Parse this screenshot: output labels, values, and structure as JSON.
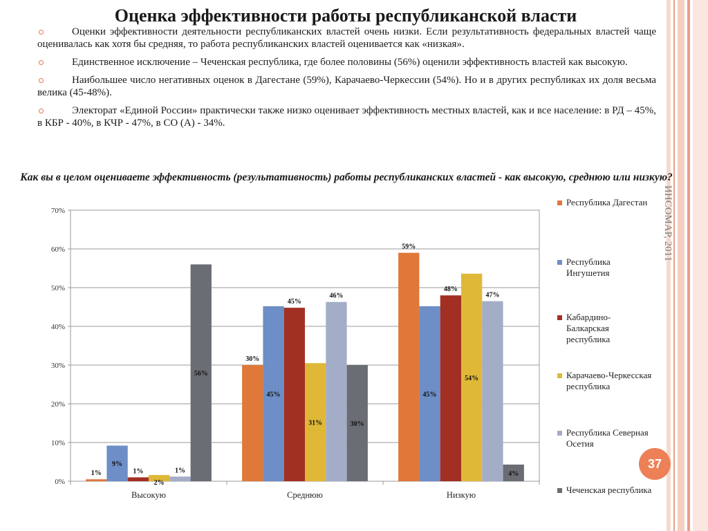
{
  "title": "Оценка эффективности работы республиканской власти",
  "bullets": [
    "Оценки эффективности деятельности республиканских властей очень низки. Если результативность федеральных властей чаще оценивалась как хотя бы средняя, то работа республиканских властей оценивается как «низкая».",
    "Единственное исключение – Чеченская республика, где более половины (56%) оценили эффективность властей как высокую.",
    "Наибольшее число негативных оценок в Дагестане (59%), Карачаево-Черкессии (54%). Но и в других республиках их доля весьма велика (45-48%).",
    "Электорат «Единой России» практически также низко оценивает эффективность местных властей, как и все население: в РД – 45%, в КБР - 40%, в КЧР - 47%, в СО (А) - 34%."
  ],
  "source": "ИНСОМАР, 2011",
  "page_number": "37",
  "chart_data": {
    "type": "bar",
    "title": "Как вы в целом оцениваете эффективность (результативность) работы республиканских властей - как высокую, среднюю или низкую?",
    "categories": [
      "Высокую",
      "Среднюю",
      "Низкую"
    ],
    "ylim": [
      0,
      70
    ],
    "yticks": [
      0,
      10,
      20,
      30,
      40,
      50,
      60,
      70
    ],
    "ytick_labels": [
      "0%",
      "10%",
      "20%",
      "30%",
      "40%",
      "50%",
      "60%",
      "70%"
    ],
    "grid": true,
    "legend_position": "right",
    "series": [
      {
        "name": "Республика Дагестан",
        "color": "#e0783a",
        "values": [
          0.5,
          30,
          59
        ],
        "labels": [
          "1%",
          "30%",
          "59%"
        ],
        "label_pos": [
          "above",
          "above",
          "above"
        ]
      },
      {
        "name": "Республика Ингушетия",
        "color": "#6d8ec6",
        "values": [
          9.2,
          45.2,
          45.2
        ],
        "labels": [
          "9%",
          "45%",
          "45%"
        ],
        "label_pos": [
          "inside",
          "inside",
          "inside"
        ]
      },
      {
        "name": "Кабардино-Балкарская республика",
        "color": "#a23022",
        "values": [
          1,
          44.8,
          48
        ],
        "labels": [
          "1%",
          "45%",
          "48%"
        ],
        "label_pos": [
          "above",
          "above",
          "above"
        ]
      },
      {
        "name": "Карачаево-Черкесская республика",
        "color": "#e0b838",
        "values": [
          1.6,
          30.5,
          53.6
        ],
        "labels": [
          "2%",
          "31%",
          "54%"
        ],
        "label_pos": [
          "inside",
          "inside",
          "inside"
        ]
      },
      {
        "name": "Республика Северная Осетия",
        "color": "#a3adc8",
        "values": [
          1.2,
          46.3,
          46.5
        ],
        "labels": [
          "1%",
          "46%",
          "47%"
        ],
        "label_pos": [
          "above",
          "above",
          "above"
        ]
      },
      {
        "name": "Чеченская республика",
        "color": "#6a6d73",
        "values": [
          56,
          30,
          4.3
        ],
        "labels": [
          "56%",
          "30%",
          "4%"
        ],
        "label_pos": [
          "inside",
          "inside",
          "inside"
        ]
      }
    ]
  }
}
